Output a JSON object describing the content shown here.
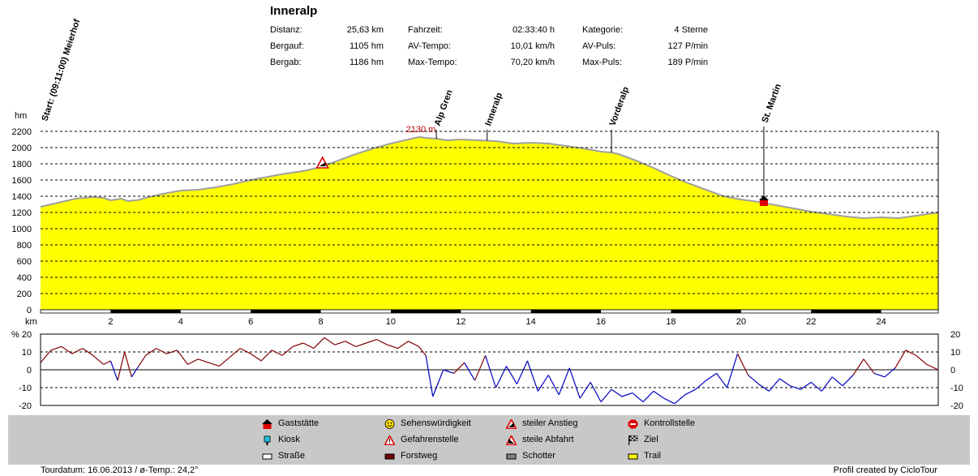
{
  "title": "Inneralp",
  "stats": [
    {
      "label": "Distanz:",
      "value": "25,63 km"
    },
    {
      "label": "Bergauf:",
      "value": "1105 hm"
    },
    {
      "label": "Bergab:",
      "value": "1186 hm"
    },
    {
      "label": "Fahrzeit:",
      "value": "02:33:40 h"
    },
    {
      "label": "AV-Tempo:",
      "value": "10,01 km/h"
    },
    {
      "label": "Max-Tempo:",
      "value": "70,20 km/h"
    },
    {
      "label": "Kategorie:",
      "value": "4 Sterne"
    },
    {
      "label": "AV-Puls:",
      "value": "127 P/min"
    },
    {
      "label": "Max-Puls:",
      "value": "189 P/min"
    }
  ],
  "legend": [
    {
      "label": "Gaststätte",
      "icon": "gaststaette-icon"
    },
    {
      "label": "Kiosk",
      "icon": "kiosk-icon"
    },
    {
      "label": "Straße",
      "icon": "strasse-icon"
    },
    {
      "label": "Sehenswürdigkeit",
      "icon": "smiley-icon"
    },
    {
      "label": "Gefahrenstelle",
      "icon": "warning-icon"
    },
    {
      "label": "Forstweg",
      "icon": "forstweg-icon"
    },
    {
      "label": "steiler Anstieg",
      "icon": "steep-climb-icon"
    },
    {
      "label": "steile Abfahrt",
      "icon": "steep-descent-icon"
    },
    {
      "label": "Schotter",
      "icon": "schotter-icon"
    },
    {
      "label": "Kontrollstelle",
      "icon": "stop-icon"
    },
    {
      "label": "Ziel",
      "icon": "finish-flag-icon"
    },
    {
      "label": "Trail",
      "icon": "trail-icon"
    }
  ],
  "footer": {
    "left": "Tourdatum: 16.06.2013  /  ø-Temp.: 24,2°",
    "right": "Profil created by CicloTour"
  },
  "colors": {
    "fill": "#ffff00",
    "outline": "#a0a0a0",
    "up": "#800000",
    "down": "#0000c0",
    "legend_bg": "#c8c8c8",
    "max_label": "#c00000"
  },
  "chart_data": [
    {
      "type": "area",
      "ylabel": "hm",
      "xlabel": "km",
      "xlim": [
        0,
        25.63
      ],
      "ylim": [
        0,
        2200
      ],
      "yticks": [
        0,
        200,
        400,
        600,
        800,
        1000,
        1200,
        1400,
        1600,
        1800,
        2000,
        2200
      ],
      "xticks": [
        2,
        4,
        6,
        8,
        10,
        12,
        14,
        16,
        18,
        20,
        22,
        24
      ],
      "grid": true,
      "max_label": "2130 m",
      "max_at_km": 10.95,
      "waypoints": [
        {
          "name": "Start: (09:11:00) Meierhof",
          "km": 0
        },
        {
          "name": "Alp Gren",
          "km": 11.3
        },
        {
          "name": "Inneralp",
          "km": 12.75
        },
        {
          "name": "Vorderalp",
          "km": 16.3
        },
        {
          "name": "St. Martin",
          "km": 20.65
        }
      ],
      "markers": [
        {
          "km": 8.05,
          "elevation": 1790,
          "type": "steiler Anstieg"
        },
        {
          "km": 20.65,
          "elevation": 1330,
          "type": "Gaststätte"
        }
      ],
      "x": [
        0,
        0.5,
        1,
        1.5,
        1.8,
        2,
        2.3,
        2.5,
        2.8,
        3,
        3.5,
        4,
        4.5,
        5,
        5.5,
        6,
        6.5,
        7,
        7.5,
        8,
        8.5,
        9,
        9.5,
        10,
        10.5,
        10.8,
        11,
        11.3,
        11.6,
        12,
        12.5,
        13,
        13.5,
        14,
        14.5,
        15,
        15.5,
        16,
        16.3,
        16.5,
        17,
        17.5,
        18,
        18.5,
        19,
        19.5,
        20,
        20.5,
        21,
        21.5,
        22,
        22.5,
        23,
        23.5,
        24,
        24.5,
        25,
        25.63
      ],
      "y": [
        1270,
        1320,
        1370,
        1390,
        1380,
        1350,
        1370,
        1340,
        1355,
        1380,
        1430,
        1470,
        1480,
        1510,
        1550,
        1600,
        1640,
        1680,
        1710,
        1760,
        1840,
        1920,
        1990,
        2050,
        2100,
        2130,
        2120,
        2110,
        2090,
        2100,
        2090,
        2080,
        2050,
        2060,
        2050,
        2020,
        1990,
        1950,
        1940,
        1920,
        1840,
        1750,
        1650,
        1560,
        1480,
        1400,
        1360,
        1330,
        1290,
        1250,
        1210,
        1180,
        1150,
        1130,
        1140,
        1130,
        1160,
        1200
      ]
    },
    {
      "type": "line",
      "ylabel": "%",
      "xlim": [
        0,
        25.63
      ],
      "ylim": [
        -20,
        20
      ],
      "yticks": [
        -20,
        -10,
        0,
        10,
        20
      ],
      "grid": true,
      "x": [
        0,
        0.3,
        0.6,
        0.9,
        1.2,
        1.5,
        1.8,
        2.0,
        2.2,
        2.4,
        2.6,
        2.8,
        3.0,
        3.3,
        3.6,
        3.9,
        4.2,
        4.5,
        4.8,
        5.1,
        5.4,
        5.7,
        6.0,
        6.3,
        6.6,
        6.9,
        7.2,
        7.5,
        7.8,
        8.1,
        8.4,
        8.7,
        9.0,
        9.3,
        9.6,
        9.9,
        10.2,
        10.5,
        10.8,
        11.0,
        11.2,
        11.5,
        11.8,
        12.1,
        12.4,
        12.7,
        13.0,
        13.3,
        13.6,
        13.9,
        14.2,
        14.5,
        14.8,
        15.1,
        15.4,
        15.7,
        16.0,
        16.3,
        16.6,
        16.9,
        17.2,
        17.5,
        17.8,
        18.1,
        18.4,
        18.7,
        19.0,
        19.3,
        19.6,
        19.9,
        20.2,
        20.5,
        20.8,
        21.1,
        21.4,
        21.7,
        22.0,
        22.3,
        22.6,
        22.9,
        23.2,
        23.5,
        23.8,
        24.1,
        24.4,
        24.7,
        25.0,
        25.3,
        25.63
      ],
      "y": [
        4,
        11,
        13,
        9,
        12,
        8,
        3,
        5,
        -6,
        10,
        -4,
        2,
        8,
        12,
        9,
        11,
        3,
        6,
        4,
        2,
        7,
        12,
        9,
        5,
        11,
        8,
        13,
        15,
        12,
        18,
        14,
        16,
        13,
        15,
        17,
        14,
        12,
        16,
        13,
        8,
        -15,
        0,
        -2,
        4,
        -6,
        8,
        -10,
        2,
        -8,
        5,
        -12,
        -3,
        -14,
        1,
        -16,
        -7,
        -18,
        -11,
        -15,
        -13,
        -18,
        -12,
        -16,
        -19,
        -14,
        -11,
        -6,
        -2,
        -10,
        9,
        -3,
        -8,
        -12,
        -5,
        -9,
        -11,
        -7,
        -12,
        -4,
        -9,
        -3,
        6,
        -2,
        -4,
        1,
        11,
        8,
        3,
        0
      ]
    }
  ]
}
